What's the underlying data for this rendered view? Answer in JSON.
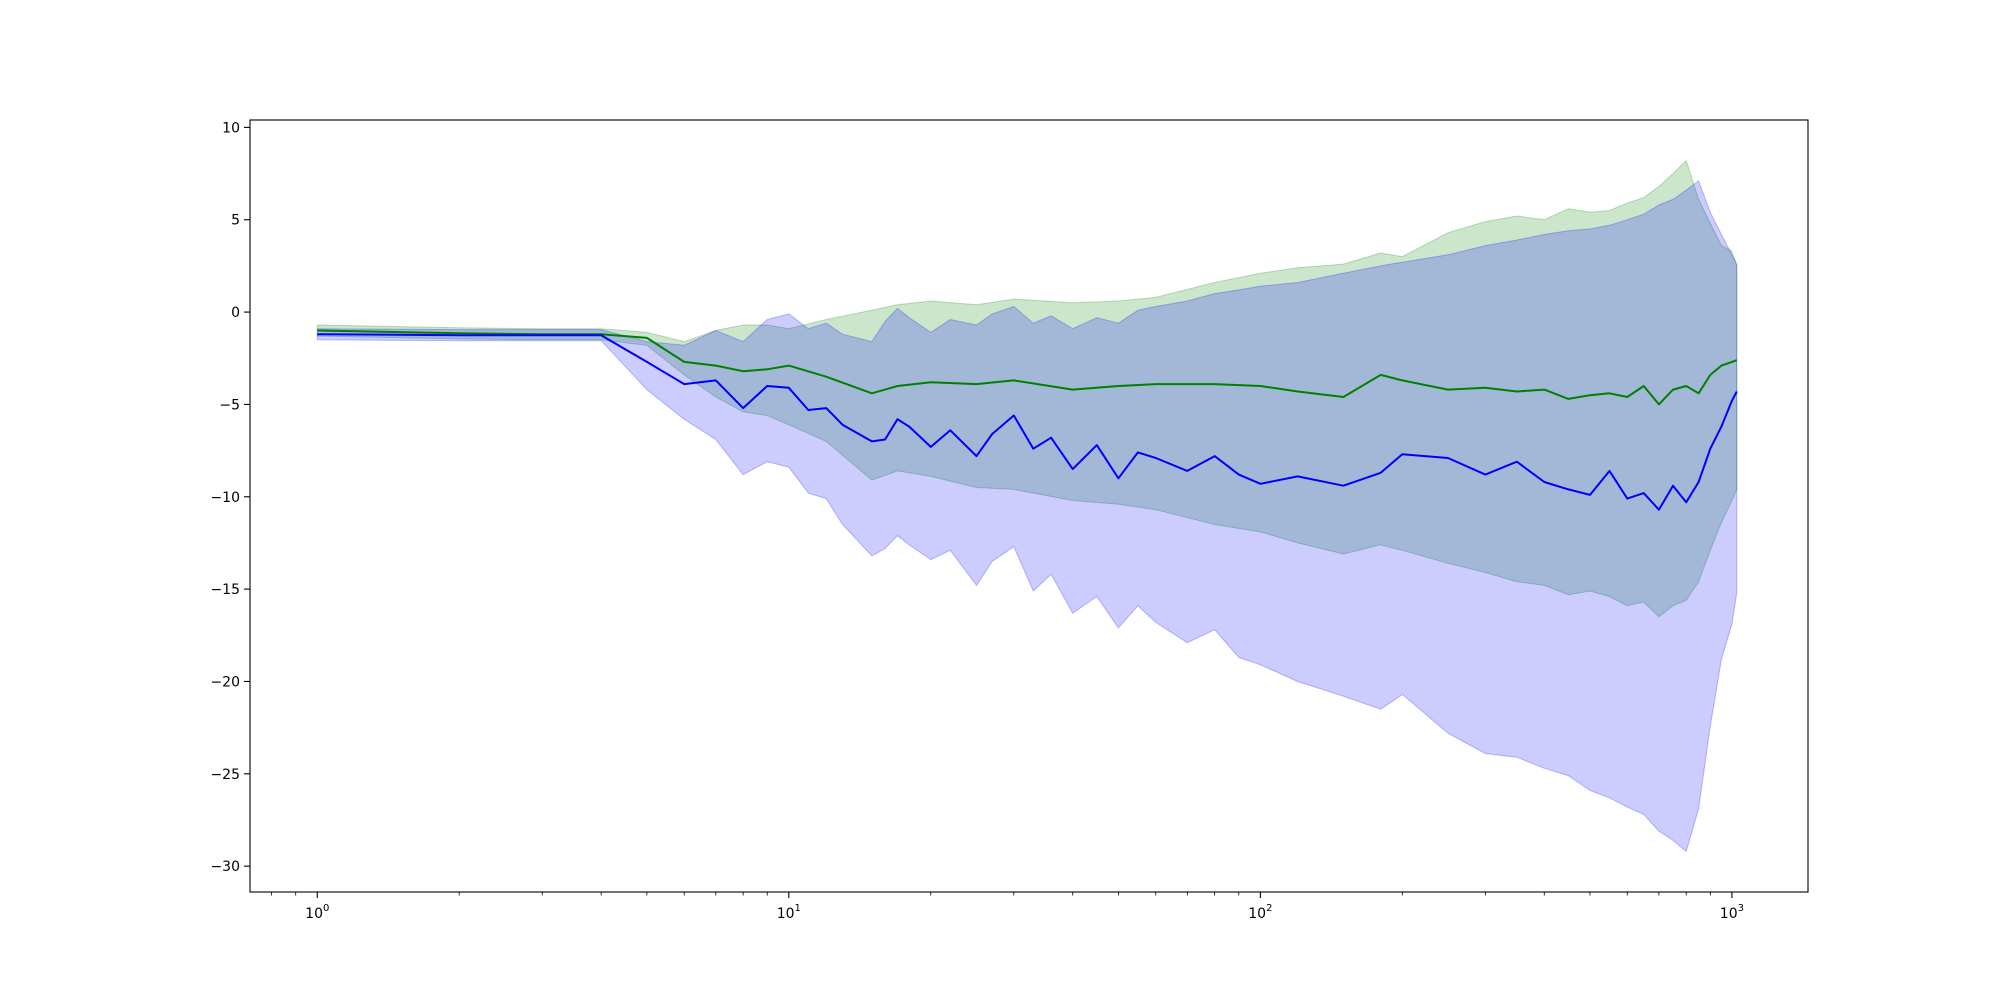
{
  "chart_data": {
    "type": "line",
    "title": "",
    "xlabel": "",
    "ylabel": "",
    "x_scale": "log",
    "xlim": [
      0.72,
      1450
    ],
    "ylim": [
      -31.4,
      10.4
    ],
    "grid": false,
    "legend": "none",
    "x_ticks": [
      {
        "value": 1,
        "base": "10",
        "exp": "0"
      },
      {
        "value": 10,
        "base": "10",
        "exp": "1"
      },
      {
        "value": 100,
        "base": "10",
        "exp": "2"
      },
      {
        "value": 1000,
        "base": "10",
        "exp": "3"
      }
    ],
    "y_ticks": [
      {
        "value": 10,
        "label": "10"
      },
      {
        "value": 5,
        "label": "5"
      },
      {
        "value": 0,
        "label": "0"
      },
      {
        "value": -5,
        "label": "−5"
      },
      {
        "value": -10,
        "label": "−10"
      },
      {
        "value": -15,
        "label": "−15"
      },
      {
        "value": -20,
        "label": "−20"
      },
      {
        "value": -25,
        "label": "−25"
      },
      {
        "value": -30,
        "label": "−30"
      }
    ],
    "series": [
      {
        "color": "#008000",
        "band_color": "#008000",
        "x": [
          1,
          2,
          3,
          4,
          5,
          6,
          7,
          8,
          9,
          10,
          12,
          15,
          17,
          20,
          25,
          30,
          40,
          50,
          60,
          80,
          100,
          120,
          150,
          180,
          200,
          250,
          300,
          350,
          400,
          450,
          500,
          550,
          600,
          650,
          700,
          750,
          800,
          850,
          900,
          950,
          1000,
          1024
        ],
        "y": [
          -1.0,
          -1.15,
          -1.2,
          -1.2,
          -1.4,
          -2.7,
          -2.9,
          -3.2,
          -3.1,
          -2.9,
          -3.5,
          -4.4,
          -4.0,
          -3.8,
          -3.9,
          -3.7,
          -4.2,
          -4.0,
          -3.9,
          -3.9,
          -4.0,
          -4.3,
          -4.6,
          -3.4,
          -3.7,
          -4.2,
          -4.1,
          -4.3,
          -4.2,
          -4.7,
          -4.5,
          -4.4,
          -4.6,
          -4.0,
          -5.0,
          -4.2,
          -4.0,
          -4.4,
          -3.4,
          -2.9,
          -2.7,
          -2.6
        ],
        "upper": [
          -0.7,
          -0.85,
          -0.9,
          -0.9,
          -1.1,
          -1.6,
          -1.0,
          -0.7,
          -0.7,
          -0.9,
          -0.4,
          0.1,
          0.4,
          0.6,
          0.4,
          0.7,
          0.5,
          0.6,
          0.8,
          1.6,
          2.1,
          2.4,
          2.6,
          3.2,
          3.0,
          4.3,
          4.9,
          5.2,
          5.0,
          5.6,
          5.4,
          5.5,
          5.9,
          6.2,
          6.8,
          7.5,
          8.2,
          6.1,
          4.8,
          3.6,
          3.3,
          2.5
        ],
        "lower": [
          -1.3,
          -1.45,
          -1.5,
          -1.5,
          -1.8,
          -3.4,
          -4.6,
          -5.4,
          -5.6,
          -6.1,
          -7.0,
          -9.1,
          -8.6,
          -8.9,
          -9.5,
          -9.6,
          -10.2,
          -10.4,
          -10.7,
          -11.5,
          -11.9,
          -12.5,
          -13.1,
          -12.6,
          -12.9,
          -13.6,
          -14.1,
          -14.6,
          -14.8,
          -15.3,
          -15.1,
          -15.4,
          -15.9,
          -15.7,
          -16.5,
          -15.9,
          -15.6,
          -14.6,
          -12.9,
          -11.4,
          -10.2,
          -9.6
        ]
      },
      {
        "color": "#0000ff",
        "band_color": "#0000ff",
        "x": [
          1,
          2,
          3,
          4,
          5,
          6,
          7,
          8,
          9,
          10,
          11,
          12,
          13,
          15,
          16,
          17,
          18,
          20,
          22,
          25,
          27,
          30,
          33,
          36,
          40,
          45,
          50,
          55,
          60,
          70,
          80,
          90,
          100,
          120,
          150,
          180,
          200,
          250,
          300,
          350,
          400,
          450,
          500,
          550,
          600,
          650,
          700,
          750,
          800,
          850,
          900,
          950,
          1000,
          1024
        ],
        "y": [
          -1.2,
          -1.25,
          -1.25,
          -1.25,
          -2.7,
          -3.9,
          -3.7,
          -5.2,
          -4.0,
          -4.1,
          -5.3,
          -5.2,
          -6.1,
          -7.0,
          -6.9,
          -5.8,
          -6.2,
          -7.3,
          -6.4,
          -7.8,
          -6.6,
          -5.6,
          -7.4,
          -6.8,
          -8.5,
          -7.2,
          -9.0,
          -7.6,
          -7.9,
          -8.6,
          -7.8,
          -8.8,
          -9.3,
          -8.9,
          -9.4,
          -8.7,
          -7.7,
          -7.9,
          -8.8,
          -8.1,
          -9.2,
          -9.6,
          -9.9,
          -8.6,
          -10.1,
          -9.8,
          -10.7,
          -9.4,
          -10.3,
          -9.2,
          -7.4,
          -6.2,
          -4.8,
          -4.3
        ],
        "upper": [
          -0.9,
          -0.95,
          -0.95,
          -0.95,
          -1.6,
          -1.8,
          -1.0,
          -1.6,
          -0.4,
          -0.1,
          -0.9,
          -0.6,
          -1.2,
          -1.6,
          -0.5,
          0.2,
          -0.3,
          -1.1,
          -0.4,
          -0.7,
          -0.1,
          0.3,
          -0.6,
          -0.2,
          -0.9,
          -0.3,
          -0.6,
          0.1,
          0.3,
          0.6,
          1.0,
          1.2,
          1.4,
          1.6,
          2.1,
          2.5,
          2.7,
          3.1,
          3.6,
          3.9,
          4.2,
          4.4,
          4.5,
          4.7,
          5.0,
          5.3,
          5.8,
          6.1,
          6.6,
          7.1,
          5.4,
          4.2,
          3.1,
          2.6
        ],
        "lower": [
          -1.5,
          -1.55,
          -1.55,
          -1.55,
          -4.2,
          -5.8,
          -6.9,
          -8.8,
          -8.1,
          -8.4,
          -9.8,
          -10.1,
          -11.5,
          -13.2,
          -12.8,
          -12.1,
          -12.6,
          -13.4,
          -12.9,
          -14.8,
          -13.5,
          -12.7,
          -15.1,
          -14.2,
          -16.3,
          -15.4,
          -17.1,
          -15.9,
          -16.8,
          -17.9,
          -17.2,
          -18.7,
          -19.1,
          -20.0,
          -20.8,
          -21.5,
          -20.7,
          -22.8,
          -23.9,
          -24.1,
          -24.7,
          -25.1,
          -25.9,
          -26.3,
          -26.8,
          -27.2,
          -28.1,
          -28.6,
          -29.2,
          -26.9,
          -22.4,
          -18.8,
          -16.9,
          -15.2
        ]
      }
    ]
  }
}
